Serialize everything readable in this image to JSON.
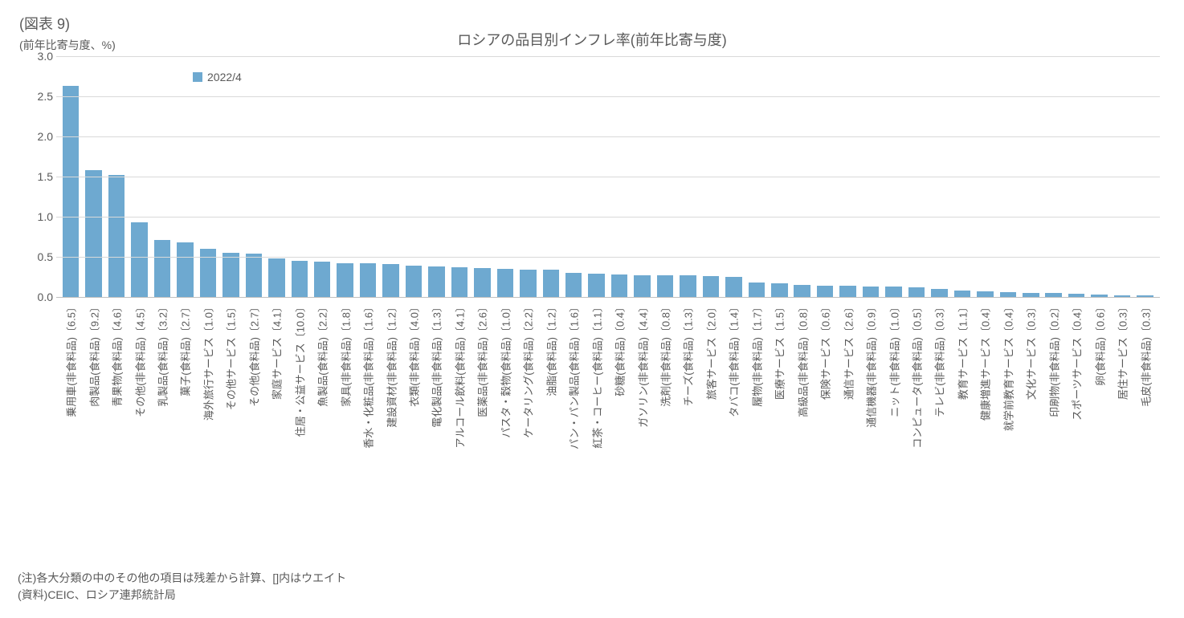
{
  "figure_number": "(図表 9)",
  "yaxis_title": "(前年比寄与度、%)",
  "chart_title": "ロシアの品目別インフレ率(前年比寄与度)",
  "legend_label": "2022/4",
  "note_line1": "(注)各大分類の中のその他の項目は残差から計算、[]内はウエイト",
  "note_line2": "(資料)CEIC、ロシア連邦統計局",
  "chart": {
    "type": "bar",
    "bar_color": "#6ea9d0",
    "grid_color": "#d9d9d9",
    "axis_color": "#bfbfbf",
    "background_color": "#ffffff",
    "text_color": "#595959",
    "title_fontsize": 18,
    "label_fontsize": 14,
    "xlabel_fontsize": 13,
    "bar_width_ratio": 0.72,
    "ylim": [
      0,
      3.0
    ],
    "ytick_step": 0.5,
    "yticks": [
      "0.0",
      "0.5",
      "1.0",
      "1.5",
      "2.0",
      "2.5",
      "3.0"
    ],
    "categories": [
      "乗用車(非食料品)〔6.5〕",
      "肉製品(食料品)〔9.2〕",
      "青果物(食料品)〔4.6〕",
      "その他(非食料品)〔4.5〕",
      "乳製品(食料品)〔3.2〕",
      "菓子(食料品)〔2.7〕",
      "海外旅行サービス〔1.0〕",
      "その他サービス〔1.5〕",
      "その他(食料品)〔2.7〕",
      "家庭サービス〔4.1〕",
      "住居・公益サービス〔10.0〕",
      "魚製品(食料品)〔2.2〕",
      "家具(非食料品)〔1.8〕",
      "香水・化粧品(非食料品)〔1.6〕",
      "建設資材(非食料品)〔1.2〕",
      "衣類(非食料品)〔4.0〕",
      "電化製品(非食料品)〔1.3〕",
      "アルコール飲料(食料品)〔4.1〕",
      "医薬品(非食料品)〔2.6〕",
      "パスタ・穀物(食料品)〔1.0〕",
      "ケータリング(食料品)〔2.2〕",
      "油脂(食料品)〔1.2〕",
      "パン・パン製品(食料品)〔1.6〕",
      "紅茶・コーヒー(食料品)〔1.1〕",
      "砂糖(食料品)〔0.4〕",
      "ガソリン(非食料品)〔4.4〕",
      "洗剤(非食料品)〔0.8〕",
      "チーズ(食料品)〔1.3〕",
      "旅客サービス〔2.0〕",
      "タバコ(非食料品)〔1.4〕",
      "履物(非食料品)〔1.7〕",
      "医療サービス〔1.5〕",
      "高級品(非食料品)〔0.8〕",
      "保険サービス〔0.6〕",
      "通信サービス〔2.6〕",
      "通信機器(非食料品)〔0.9〕",
      "ニット(非食料品)〔1.0〕",
      "コンピュータ(非食料品)〔0.5〕",
      "テレビ(非食料品)〔0.3〕",
      "教育サービス〔1.1〕",
      "健康増進サービス〔0.4〕",
      "就学前教育サービス〔0.4〕",
      "文化サービス〔0.3〕",
      "印刷物(非食料品)〔0.2〕",
      "スポーツサービス〔0.4〕",
      "卵(食料品)〔0.6〕",
      "居住サービス〔0.3〕",
      "毛皮(非食料品)〔0.3〕"
    ],
    "values": [
      2.63,
      1.58,
      1.52,
      0.93,
      0.71,
      0.68,
      0.6,
      0.55,
      0.54,
      0.48,
      0.45,
      0.44,
      0.42,
      0.42,
      0.41,
      0.39,
      0.38,
      0.37,
      0.36,
      0.35,
      0.34,
      0.34,
      0.3,
      0.29,
      0.28,
      0.27,
      0.27,
      0.27,
      0.26,
      0.25,
      0.18,
      0.17,
      0.15,
      0.14,
      0.14,
      0.13,
      0.13,
      0.12,
      0.1,
      0.08,
      0.07,
      0.06,
      0.05,
      0.05,
      0.04,
      0.03,
      0.02,
      0.02
    ]
  }
}
